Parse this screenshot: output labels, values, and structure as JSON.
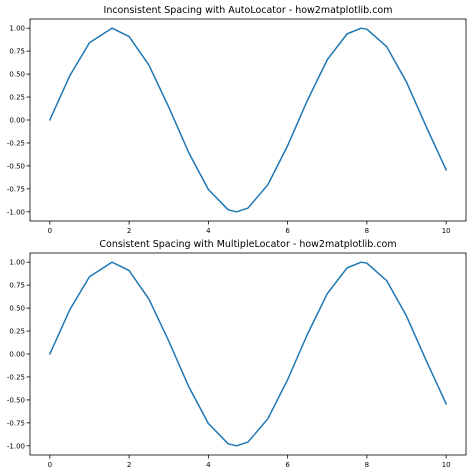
{
  "chart_data": [
    {
      "type": "line",
      "title": "Inconsistent Spacing with AutoLocator - how2matplotlib.com",
      "xlabel": "",
      "ylabel": "",
      "xlim": [
        -0.5,
        10.5
      ],
      "ylim": [
        -1.1,
        1.1
      ],
      "grid": false,
      "x_ticks": [
        0,
        2,
        4,
        6,
        8,
        10
      ],
      "x_tick_labels": [
        "0",
        "2",
        "4",
        "6",
        "8",
        "10"
      ],
      "y_ticks": [
        1.0,
        0.75,
        0.5,
        0.25,
        0.0,
        -0.25,
        -0.5,
        -0.75,
        -1.0
      ],
      "y_tick_labels": [
        "1.00",
        "0.75",
        "0.50",
        "0.25",
        "0.00",
        "-0.25",
        "-0.50",
        "-0.75",
        "-1.00"
      ],
      "series": [
        {
          "color": "#1f77b4",
          "x": [
            0,
            0.5,
            1,
            1.5708,
            2,
            2.5,
            3,
            3.5,
            4,
            4.5,
            4.7124,
            5,
            5.5,
            6,
            6.5,
            7,
            7.5,
            7.854,
            8,
            8.5,
            9,
            9.5,
            10
          ],
          "y": [
            0,
            0.479,
            0.841,
            1.0,
            0.909,
            0.598,
            0.141,
            -0.351,
            -0.757,
            -0.978,
            -1.0,
            -0.959,
            -0.706,
            -0.279,
            0.215,
            0.657,
            0.938,
            1.0,
            0.989,
            0.798,
            0.412,
            -0.075,
            -0.544
          ]
        }
      ]
    },
    {
      "type": "line",
      "title": "Consistent Spacing with MultipleLocator - how2matplotlib.com",
      "xlabel": "",
      "ylabel": "",
      "xlim": [
        -0.5,
        10.5
      ],
      "ylim": [
        -1.1,
        1.1
      ],
      "grid": false,
      "x_ticks": [
        0,
        2,
        4,
        6,
        8,
        10
      ],
      "x_tick_labels": [
        "0",
        "2",
        "4",
        "6",
        "8",
        "10"
      ],
      "y_ticks": [
        1.0,
        0.75,
        0.5,
        0.25,
        0.0,
        -0.25,
        -0.5,
        -0.75,
        -1.0
      ],
      "y_tick_labels": [
        "1.00",
        "0.75",
        "0.50",
        "0.25",
        "0.00",
        "-0.25",
        "-0.50",
        "-0.75",
        "-1.00"
      ],
      "series": [
        {
          "color": "#1f77b4",
          "x": [
            0,
            0.5,
            1,
            1.5708,
            2,
            2.5,
            3,
            3.5,
            4,
            4.5,
            4.7124,
            5,
            5.5,
            6,
            6.5,
            7,
            7.5,
            7.854,
            8,
            8.5,
            9,
            9.5,
            10
          ],
          "y": [
            0,
            0.479,
            0.841,
            1.0,
            0.909,
            0.598,
            0.141,
            -0.351,
            -0.757,
            -0.978,
            -1.0,
            -0.959,
            -0.706,
            -0.279,
            0.215,
            0.657,
            0.938,
            1.0,
            0.989,
            0.798,
            0.412,
            -0.075,
            -0.544
          ]
        }
      ]
    }
  ]
}
